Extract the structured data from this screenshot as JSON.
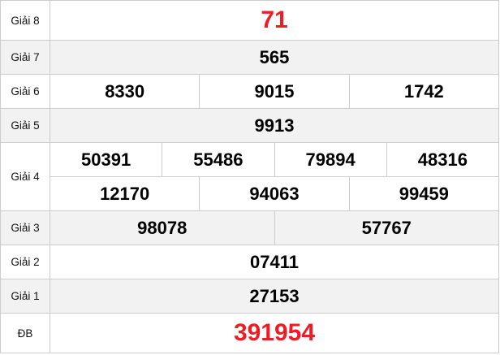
{
  "accent_color": "#ee1c25",
  "rows": [
    {
      "label": "Giải 8",
      "lines": [
        [
          "71"
        ]
      ],
      "highlight": true
    },
    {
      "label": "Giải 7",
      "lines": [
        [
          "565"
        ]
      ]
    },
    {
      "label": "Giải 6",
      "lines": [
        [
          "8330",
          "9015",
          "1742"
        ]
      ]
    },
    {
      "label": "Giải 5",
      "lines": [
        [
          "9913"
        ]
      ]
    },
    {
      "label": "Giải 4",
      "lines": [
        [
          "50391",
          "55486",
          "79894",
          "48316"
        ],
        [
          "12170",
          "94063",
          "99459"
        ]
      ]
    },
    {
      "label": "Giải 3",
      "lines": [
        [
          "98078",
          "57767"
        ]
      ]
    },
    {
      "label": "Giải 2",
      "lines": [
        [
          "07411"
        ]
      ]
    },
    {
      "label": "Giải 1",
      "lines": [
        [
          "27153"
        ]
      ]
    },
    {
      "label": "ĐB",
      "lines": [
        [
          "391954"
        ]
      ],
      "highlight": true
    }
  ]
}
